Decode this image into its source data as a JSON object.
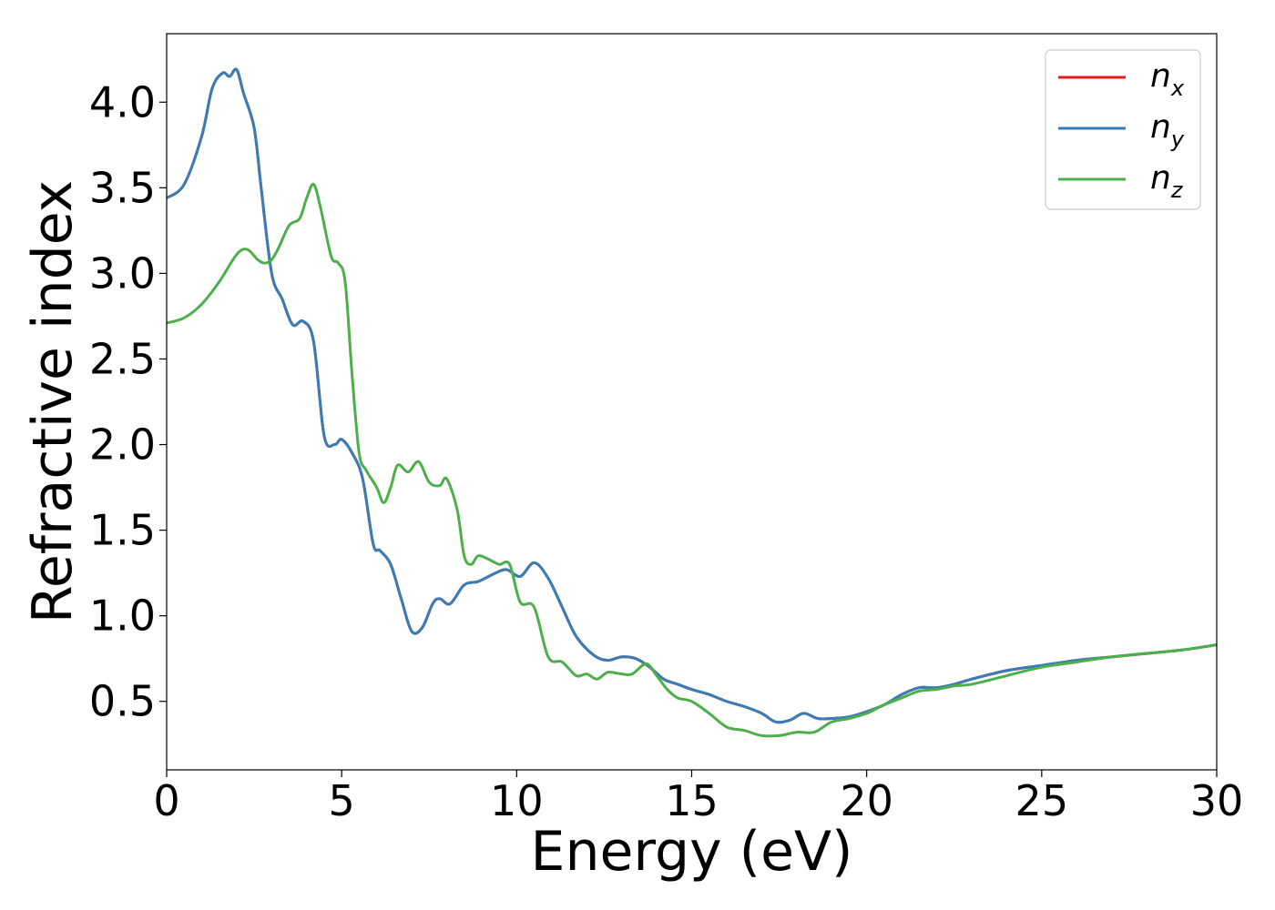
{
  "chart_data": {
    "type": "line",
    "xlabel": "Energy (eV)",
    "ylabel": "Refractive index",
    "xlim": [
      0,
      30
    ],
    "ylim": [
      0.1,
      4.4
    ],
    "x_ticks": [
      0,
      5,
      10,
      15,
      20,
      25,
      30
    ],
    "x_tick_labels": [
      "0",
      "5",
      "10",
      "15",
      "20",
      "25",
      "30"
    ],
    "y_ticks": [
      0.5,
      1.0,
      1.5,
      2.0,
      2.5,
      3.0,
      3.5,
      4.0
    ],
    "y_tick_labels": [
      "0.5",
      "1.0",
      "1.5",
      "2.0",
      "2.5",
      "3.0",
      "3.5",
      "4.0"
    ],
    "grid": false,
    "legend_position": "top-right",
    "series": [
      {
        "name": "n_x",
        "label_base": "n",
        "label_sub": "x",
        "color": "#e41a1c",
        "x": [
          0,
          0.5,
          1.0,
          1.3,
          1.6,
          1.8,
          2.0,
          2.2,
          2.5,
          2.7,
          3.0,
          3.3,
          3.6,
          3.9,
          4.2,
          4.5,
          4.8,
          5.0,
          5.3,
          5.6,
          5.9,
          6.1,
          6.4,
          6.7,
          7.0,
          7.3,
          7.6,
          7.8,
          8.1,
          8.5,
          8.9,
          9.3,
          9.7,
          10.1,
          10.5,
          10.9,
          11.3,
          11.7,
          12.2,
          12.6,
          13.0,
          13.4,
          13.8,
          14.2,
          14.6,
          15.0,
          15.5,
          16.0,
          16.5,
          17.0,
          17.4,
          17.8,
          18.2,
          18.6,
          19.0,
          19.5,
          20.0,
          20.5,
          21.0,
          21.5,
          22.0,
          22.5,
          23.0,
          24.0,
          25.0,
          26.0,
          27.0,
          28.0,
          29.0,
          30.0
        ],
        "y": [
          3.44,
          3.52,
          3.8,
          4.08,
          4.17,
          4.15,
          4.19,
          4.05,
          3.85,
          3.5,
          3.0,
          2.85,
          2.7,
          2.72,
          2.6,
          2.05,
          2.0,
          2.03,
          1.95,
          1.8,
          1.42,
          1.38,
          1.3,
          1.1,
          0.91,
          0.93,
          1.07,
          1.1,
          1.07,
          1.18,
          1.2,
          1.24,
          1.27,
          1.23,
          1.31,
          1.22,
          1.05,
          0.88,
          0.77,
          0.74,
          0.76,
          0.75,
          0.7,
          0.63,
          0.6,
          0.57,
          0.54,
          0.5,
          0.47,
          0.43,
          0.38,
          0.39,
          0.43,
          0.4,
          0.4,
          0.41,
          0.44,
          0.48,
          0.54,
          0.58,
          0.58,
          0.6,
          0.63,
          0.68,
          0.71,
          0.74,
          0.76,
          0.78,
          0.8,
          0.83
        ]
      },
      {
        "name": "n_y",
        "label_base": "n",
        "label_sub": "y",
        "color": "#377eb8",
        "x": [
          0,
          0.5,
          1.0,
          1.3,
          1.6,
          1.8,
          2.0,
          2.2,
          2.5,
          2.7,
          3.0,
          3.3,
          3.6,
          3.9,
          4.2,
          4.5,
          4.8,
          5.0,
          5.3,
          5.6,
          5.9,
          6.1,
          6.4,
          6.7,
          7.0,
          7.3,
          7.6,
          7.8,
          8.1,
          8.5,
          8.9,
          9.3,
          9.7,
          10.1,
          10.5,
          10.9,
          11.3,
          11.7,
          12.2,
          12.6,
          13.0,
          13.4,
          13.8,
          14.2,
          14.6,
          15.0,
          15.5,
          16.0,
          16.5,
          17.0,
          17.4,
          17.8,
          18.2,
          18.6,
          19.0,
          19.5,
          20.0,
          20.5,
          21.0,
          21.5,
          22.0,
          22.5,
          23.0,
          24.0,
          25.0,
          26.0,
          27.0,
          28.0,
          29.0,
          30.0
        ],
        "y": [
          3.44,
          3.52,
          3.8,
          4.08,
          4.17,
          4.15,
          4.19,
          4.05,
          3.85,
          3.5,
          3.0,
          2.85,
          2.7,
          2.72,
          2.6,
          2.05,
          2.0,
          2.03,
          1.95,
          1.8,
          1.42,
          1.38,
          1.3,
          1.1,
          0.91,
          0.93,
          1.07,
          1.1,
          1.07,
          1.18,
          1.2,
          1.24,
          1.27,
          1.23,
          1.31,
          1.22,
          1.05,
          0.88,
          0.77,
          0.74,
          0.76,
          0.75,
          0.7,
          0.63,
          0.6,
          0.57,
          0.54,
          0.5,
          0.47,
          0.43,
          0.38,
          0.39,
          0.43,
          0.4,
          0.4,
          0.41,
          0.44,
          0.48,
          0.54,
          0.58,
          0.58,
          0.6,
          0.63,
          0.68,
          0.71,
          0.74,
          0.76,
          0.78,
          0.8,
          0.83
        ]
      },
      {
        "name": "n_z",
        "label_base": "n",
        "label_sub": "z",
        "color": "#4daf4a",
        "x": [
          0,
          0.5,
          1.0,
          1.5,
          2.0,
          2.3,
          2.6,
          2.8,
          3.0,
          3.2,
          3.5,
          3.8,
          4.0,
          4.2,
          4.4,
          4.7,
          4.9,
          5.1,
          5.3,
          5.5,
          5.7,
          6.0,
          6.2,
          6.4,
          6.6,
          6.9,
          7.2,
          7.5,
          7.8,
          8.0,
          8.3,
          8.5,
          8.7,
          8.9,
          9.2,
          9.5,
          9.8,
          10.1,
          10.5,
          10.9,
          11.3,
          11.7,
          12.0,
          12.3,
          12.6,
          13.0,
          13.3,
          13.7,
          14.0,
          14.3,
          14.6,
          15.0,
          15.5,
          16.0,
          16.5,
          17.0,
          17.5,
          18.0,
          18.5,
          19.0,
          19.5,
          20.0,
          20.5,
          21.0,
          21.5,
          22.0,
          22.5,
          23.0,
          24.0,
          25.0,
          26.0,
          27.0,
          28.0,
          29.0,
          30.0
        ],
        "y": [
          2.71,
          2.74,
          2.82,
          2.95,
          3.11,
          3.14,
          3.08,
          3.06,
          3.08,
          3.15,
          3.28,
          3.32,
          3.44,
          3.52,
          3.38,
          3.1,
          3.06,
          2.95,
          2.4,
          1.95,
          1.85,
          1.75,
          1.66,
          1.75,
          1.88,
          1.84,
          1.9,
          1.78,
          1.76,
          1.8,
          1.62,
          1.35,
          1.3,
          1.35,
          1.33,
          1.3,
          1.3,
          1.08,
          1.05,
          0.76,
          0.73,
          0.65,
          0.66,
          0.63,
          0.67,
          0.66,
          0.66,
          0.72,
          0.65,
          0.57,
          0.52,
          0.5,
          0.43,
          0.35,
          0.33,
          0.3,
          0.3,
          0.32,
          0.32,
          0.38,
          0.4,
          0.43,
          0.48,
          0.52,
          0.56,
          0.57,
          0.59,
          0.6,
          0.65,
          0.7,
          0.73,
          0.76,
          0.78,
          0.8,
          0.83
        ]
      }
    ]
  }
}
